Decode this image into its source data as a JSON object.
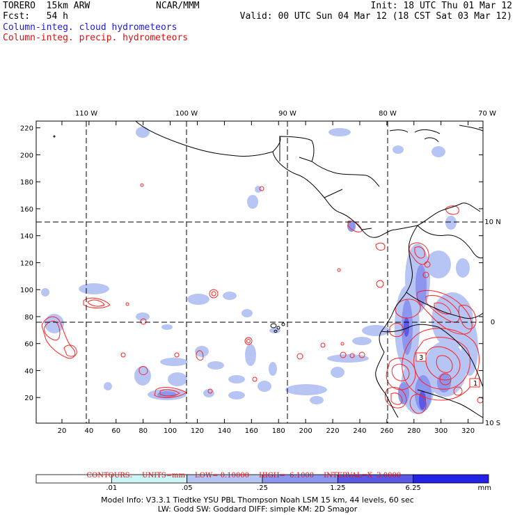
{
  "header": {
    "model": "TORERO  15km ARW",
    "forecast": "Fcst:   54 h",
    "center": "NCAR/MMM",
    "init": "Init: 18 UTC Thu 01 Mar 12",
    "valid": "Valid: 00 UTC Sun 04 Mar 12 (18 CST Sat 03 Mar 12)",
    "field1": "Column-integ. cloud hydrometeors",
    "field2": "Column-integ. precip. hydrometeors"
  },
  "colors": {
    "field1": "#1a1ae6",
    "field2": "#e01010",
    "coast": "#000000",
    "precip_contour": "#ff2020"
  },
  "map": {
    "top_lon_labels": [
      "110 W",
      "100 W",
      "90 W",
      "80 W",
      "70 W"
    ],
    "right_lat_labels": [
      "10 N",
      "0",
      "10 S"
    ],
    "x_ticks": [
      "20",
      "40",
      "60",
      "80",
      "100",
      "120",
      "140",
      "160",
      "180",
      "200",
      "220",
      "240",
      "260",
      "280",
      "300",
      "320"
    ],
    "y_ticks": [
      "20",
      "40",
      "60",
      "80",
      "100",
      "120",
      "140",
      "160",
      "180",
      "200",
      "220"
    ],
    "boxed_labels": [
      "3",
      "1"
    ]
  },
  "contours": {
    "title": "CONTOURS:",
    "units": "UNITS=mm",
    "low": "LOW= 0.10000",
    "high": "HIGH=  6.1000",
    "interval": "INTERVAL=X  3.0000"
  },
  "legend": {
    "labels": [
      ".01",
      ".05",
      ".25",
      "1.25",
      "6.25",
      "mm"
    ],
    "colors": [
      "#ffffff",
      "#ccf5f7",
      "#b7c5f5",
      "#8c96ee",
      "#5a5ae6",
      "#2323e6"
    ]
  },
  "footer": {
    "line1": "Model Info: V3.3.1    Tiedtke YSU PBL  Thompson     Noah LSM  15 km,   44 levels,   60 sec",
    "line2": "LW: Godd SW: Goddard DIFF: simple KM: 2D Smagor"
  }
}
